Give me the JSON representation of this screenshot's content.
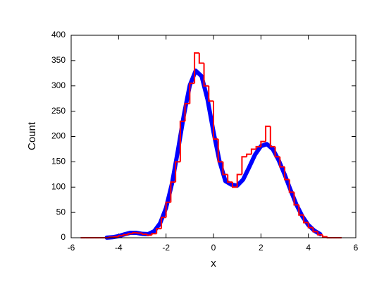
{
  "chart_data": {
    "type": "histogram",
    "xlabel": "x",
    "ylabel": "Count",
    "xlim": [
      -6,
      6
    ],
    "ylim": [
      0,
      400
    ],
    "xticks": [
      -6,
      -4,
      -2,
      0,
      2,
      4,
      6
    ],
    "yticks": [
      0,
      50,
      100,
      150,
      200,
      250,
      300,
      350,
      400
    ],
    "color": "#ff0000",
    "bins": [
      -5.6,
      -5.4,
      -5.2,
      -5.0,
      -4.8,
      -4.6,
      -4.4,
      -4.2,
      -4.0,
      -3.8,
      -3.6,
      -3.4,
      -3.2,
      -3.0,
      -2.8,
      -2.6,
      -2.4,
      -2.2,
      -2.0,
      -1.8,
      -1.6,
      -1.4,
      -1.2,
      -1.0,
      -0.8,
      -0.6,
      -0.4,
      -0.2,
      0.0,
      0.2,
      0.4,
      0.6,
      0.8,
      1.0,
      1.2,
      1.4,
      1.6,
      1.8,
      2.0,
      2.2,
      2.4,
      2.6,
      2.8,
      3.0,
      3.2,
      3.4,
      3.6,
      3.8,
      4.0,
      4.2,
      4.4,
      4.6,
      4.8,
      5.0,
      5.2,
      5.4
    ],
    "counts": [
      0,
      0,
      0,
      0,
      0,
      0,
      1,
      2,
      4,
      6,
      8,
      10,
      9,
      7,
      5,
      8,
      18,
      40,
      70,
      110,
      150,
      230,
      265,
      305,
      365,
      345,
      300,
      270,
      195,
      150,
      125,
      110,
      100,
      125,
      160,
      165,
      175,
      180,
      190,
      220,
      180,
      160,
      140,
      115,
      90,
      65,
      45,
      30,
      20,
      12,
      6,
      2,
      0,
      0,
      0
    ],
    "overlay": {
      "type": "line",
      "color": "#0000ff",
      "x": [
        -4.5,
        -4.25,
        -4.0,
        -3.75,
        -3.5,
        -3.25,
        -3.0,
        -2.75,
        -2.5,
        -2.25,
        -2.0,
        -1.75,
        -1.5,
        -1.25,
        -1.0,
        -0.75,
        -0.5,
        -0.25,
        0.0,
        0.25,
        0.5,
        0.75,
        1.0,
        1.25,
        1.5,
        1.75,
        2.0,
        2.25,
        2.5,
        2.75,
        3.0,
        3.25,
        3.5,
        3.75,
        4.0,
        4.25,
        4.5
      ],
      "y": [
        0.2,
        1.0,
        3.2,
        6.8,
        9.8,
        9.7,
        7.6,
        7.2,
        12.9,
        28.6,
        59,
        107,
        172,
        242,
        301,
        330,
        319,
        273,
        209,
        152,
        112,
        105,
        103,
        115,
        139,
        164,
        181,
        185,
        175,
        153,
        125,
        94,
        65,
        42,
        25,
        14,
        7
      ]
    }
  }
}
